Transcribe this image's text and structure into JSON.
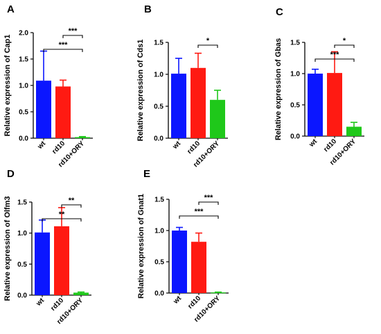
{
  "chart_data": [
    {
      "panel": "A",
      "type": "bar",
      "categories": [
        "wt",
        "rd10",
        "rd10+ORY"
      ],
      "values": [
        1.09,
        0.98,
        0.02
      ],
      "errors": [
        0.56,
        0.12,
        0.01
      ],
      "colors": [
        "#0b16ff",
        "#ff1a12",
        "#1fc81a"
      ],
      "ylabel": "Relative expression of Cap1",
      "ylim": [
        0,
        2.0
      ],
      "yticks": [
        "0.0",
        "0.5",
        "1.0",
        "1.5",
        "2.0"
      ],
      "significance": [
        {
          "from": 0,
          "to": 2,
          "label": "***"
        },
        {
          "from": 1,
          "to": 2,
          "label": "***"
        }
      ]
    },
    {
      "panel": "B",
      "type": "bar",
      "categories": [
        "wt",
        "rd10",
        "rd10+ORY"
      ],
      "values": [
        1.01,
        1.1,
        0.6
      ],
      "errors": [
        0.24,
        0.23,
        0.15
      ],
      "colors": [
        "#0b16ff",
        "#ff1a12",
        "#1fc81a"
      ],
      "ylabel": "Relative expression of Cds1",
      "ylim": [
        0,
        1.5
      ],
      "yticks": [
        "0.0",
        "0.5",
        "1.0",
        "1.5"
      ],
      "significance": [
        {
          "from": 1,
          "to": 2,
          "label": "*"
        }
      ]
    },
    {
      "panel": "C",
      "type": "bar",
      "categories": [
        "wt",
        "rd10",
        "rd10+ORY"
      ],
      "values": [
        1.0,
        1.01,
        0.15
      ],
      "errors": [
        0.07,
        0.34,
        0.07
      ],
      "colors": [
        "#0b16ff",
        "#ff1a12",
        "#1fc81a"
      ],
      "ylabel": "Relative expression of Gbas",
      "ylim": [
        0,
        1.5
      ],
      "yticks": [
        "0.0",
        "0.5",
        "1.0",
        "1.5"
      ],
      "significance": [
        {
          "from": 0,
          "to": 2,
          "label": "***"
        },
        {
          "from": 1,
          "to": 2,
          "label": "*"
        }
      ]
    },
    {
      "panel": "D",
      "type": "bar",
      "categories": [
        "wt",
        "rd10",
        "rd10+ORY"
      ],
      "values": [
        1.01,
        1.11,
        0.04
      ],
      "errors": [
        0.2,
        0.3,
        0.01
      ],
      "colors": [
        "#0b16ff",
        "#ff1a12",
        "#1fc81a"
      ],
      "ylabel": "Relative expression of Olfm3",
      "ylim": [
        0,
        1.5
      ],
      "yticks": [
        "0.0",
        "0.5",
        "1.0",
        "1.5"
      ],
      "significance": [
        {
          "from": 0,
          "to": 2,
          "label": "**"
        },
        {
          "from": 1,
          "to": 2,
          "label": "**"
        }
      ]
    },
    {
      "panel": "E",
      "type": "bar",
      "categories": [
        "wt",
        "rd10",
        "rd10+ORY"
      ],
      "values": [
        1.0,
        0.82,
        0.01
      ],
      "errors": [
        0.05,
        0.14,
        0.005
      ],
      "colors": [
        "#0b16ff",
        "#ff1a12",
        "#1fc81a"
      ],
      "ylabel": "Relative expression of Gnat1",
      "ylim": [
        0,
        1.5
      ],
      "yticks": [
        "0.0",
        "0.5",
        "1.0",
        "1.5"
      ],
      "significance": [
        {
          "from": 0,
          "to": 2,
          "label": "***"
        },
        {
          "from": 1,
          "to": 2,
          "label": "***"
        }
      ]
    }
  ]
}
